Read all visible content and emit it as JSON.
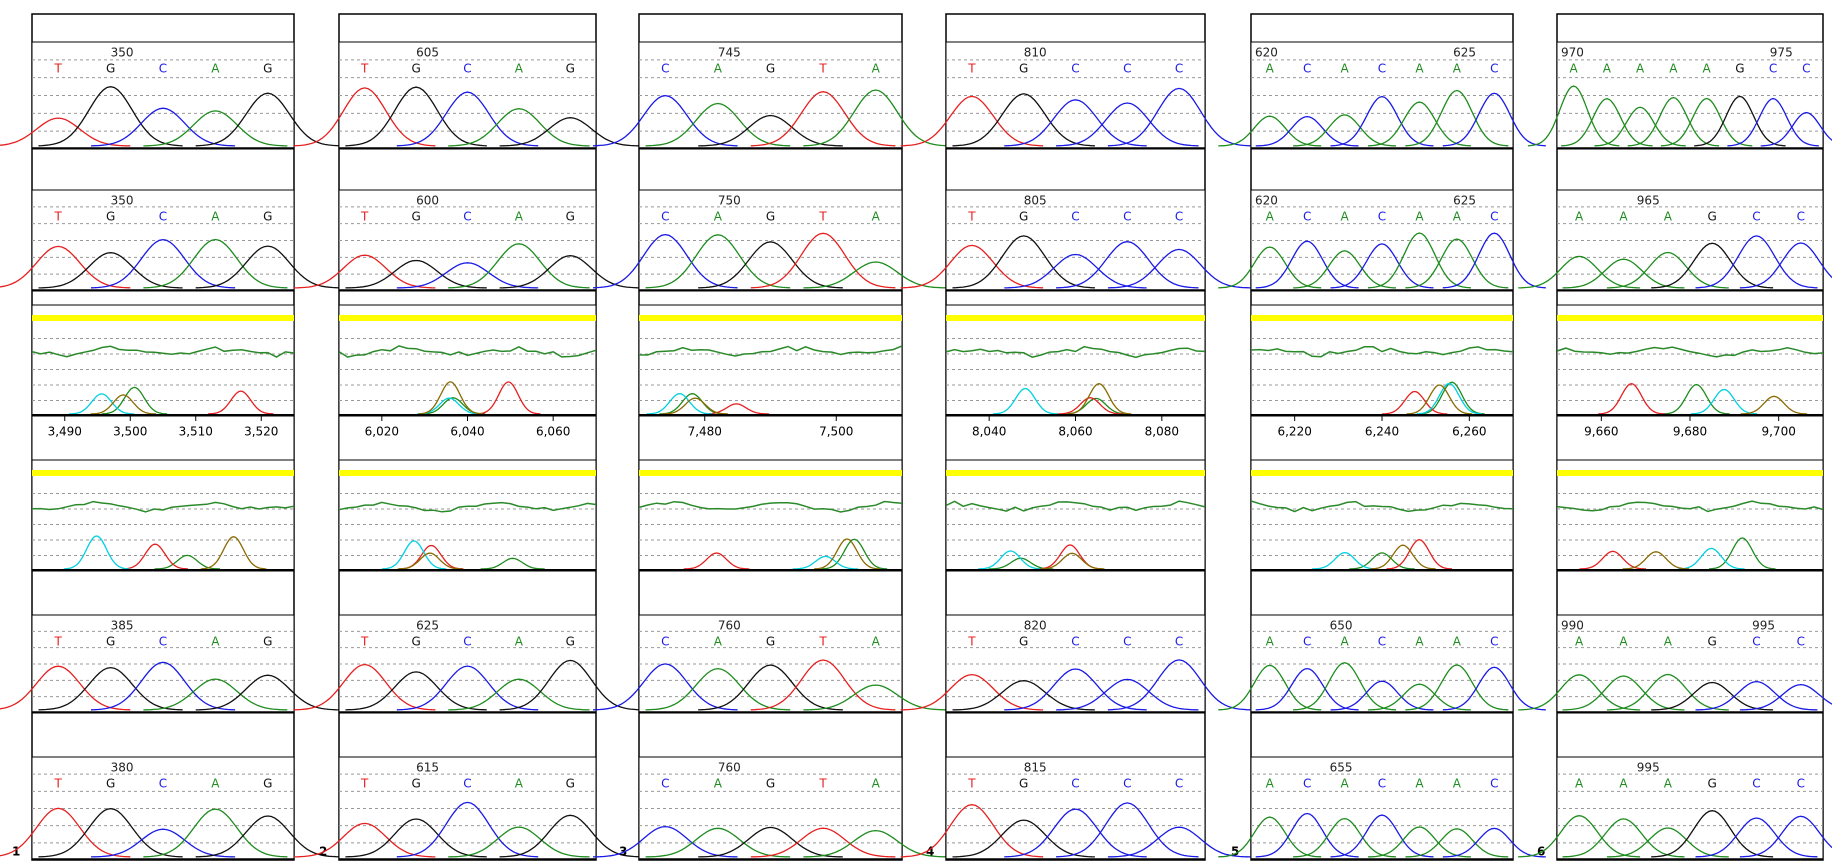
{
  "base_colors": {
    "A": "#1e8c1e",
    "C": "#1a1ae6",
    "G": "#111111",
    "T": "#e62020"
  },
  "panels": [
    {
      "label": "1",
      "tracks": [
        {
          "positions": [
            "350"
          ],
          "bases": [
            "T",
            "G",
            "C",
            "A",
            "G"
          ]
        },
        {
          "positions": [
            "350"
          ],
          "bases": [
            "T",
            "G",
            "C",
            "A",
            "G"
          ]
        },
        {
          "positions": [
            "385"
          ],
          "bases": [
            "T",
            "G",
            "C",
            "A",
            "G"
          ]
        },
        {
          "positions": [
            "380"
          ],
          "bases": [
            "T",
            "G",
            "C",
            "A",
            "G"
          ]
        }
      ],
      "axis_ticks": [
        "3,490",
        "3,500",
        "3,510",
        "3,520"
      ]
    },
    {
      "label": "2",
      "tracks": [
        {
          "positions": [
            "605"
          ],
          "bases": [
            "T",
            "G",
            "C",
            "A",
            "G"
          ]
        },
        {
          "positions": [
            "600"
          ],
          "bases": [
            "T",
            "G",
            "C",
            "A",
            "G"
          ]
        },
        {
          "positions": [
            "625"
          ],
          "bases": [
            "T",
            "G",
            "C",
            "A",
            "G"
          ]
        },
        {
          "positions": [
            "615"
          ],
          "bases": [
            "T",
            "G",
            "C",
            "A",
            "G"
          ]
        }
      ],
      "axis_ticks": [
        "6,020",
        "6,040",
        "6,060"
      ]
    },
    {
      "label": "3",
      "tracks": [
        {
          "positions": [
            "745"
          ],
          "bases": [
            "C",
            "A",
            "G",
            "T",
            "A"
          ]
        },
        {
          "positions": [
            "750"
          ],
          "bases": [
            "C",
            "A",
            "G",
            "T",
            "A"
          ]
        },
        {
          "positions": [
            "760"
          ],
          "bases": [
            "C",
            "A",
            "G",
            "T",
            "A"
          ]
        },
        {
          "positions": [
            "760"
          ],
          "bases": [
            "C",
            "A",
            "G",
            "T",
            "A"
          ]
        }
      ],
      "axis_ticks": [
        "7,480",
        "7,500"
      ]
    },
    {
      "label": "4",
      "tracks": [
        {
          "positions": [
            "810"
          ],
          "bases": [
            "T",
            "G",
            "C",
            "C",
            "C"
          ]
        },
        {
          "positions": [
            "805"
          ],
          "bases": [
            "T",
            "G",
            "C",
            "C",
            "C"
          ]
        },
        {
          "positions": [
            "820"
          ],
          "bases": [
            "T",
            "G",
            "C",
            "C",
            "C"
          ]
        },
        {
          "positions": [
            "815"
          ],
          "bases": [
            "T",
            "G",
            "C",
            "C",
            "C"
          ]
        }
      ],
      "axis_ticks": [
        "8,040",
        "8,060",
        "8,080"
      ]
    },
    {
      "label": "5",
      "tracks": [
        {
          "positions": [
            "620",
            "625"
          ],
          "bases": [
            "A",
            "C",
            "A",
            "C",
            "A",
            "A",
            "C"
          ]
        },
        {
          "positions": [
            "620",
            "625"
          ],
          "bases": [
            "A",
            "C",
            "A",
            "C",
            "A",
            "A",
            "C"
          ]
        },
        {
          "positions": [
            "650"
          ],
          "bases": [
            "A",
            "C",
            "A",
            "C",
            "A",
            "A",
            "C"
          ]
        },
        {
          "positions": [
            "655"
          ],
          "bases": [
            "A",
            "C",
            "A",
            "C",
            "A",
            "A",
            "C"
          ]
        }
      ],
      "axis_ticks": [
        "6,220",
        "6,240",
        "6,260"
      ]
    },
    {
      "label": "6",
      "tracks": [
        {
          "positions": [
            "970",
            "975"
          ],
          "bases": [
            "A",
            "A",
            "A",
            "A",
            "A",
            "G",
            "C",
            "C"
          ]
        },
        {
          "positions": [
            "965"
          ],
          "bases": [
            "A",
            "A",
            "A",
            "G",
            "C",
            "C"
          ]
        },
        {
          "positions": [
            "990",
            "995"
          ],
          "bases": [
            "A",
            "A",
            "A",
            "G",
            "C",
            "C"
          ]
        },
        {
          "positions": [
            "995"
          ],
          "bases": [
            "A",
            "A",
            "A",
            "G",
            "C",
            "C"
          ]
        }
      ],
      "axis_ticks": [
        "9,660",
        "9,680",
        "9,700"
      ]
    }
  ]
}
